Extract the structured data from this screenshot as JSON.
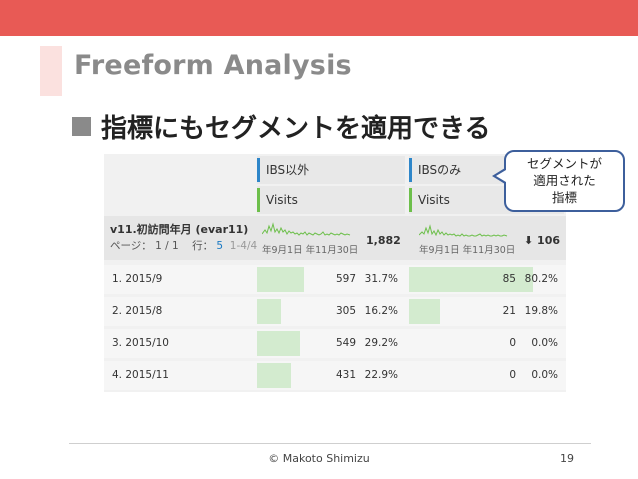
{
  "slide": {
    "title": "Freeform Analysis",
    "bullet": "指標にもセグメントを適用できる",
    "callout": [
      "セグメントが",
      "適用された",
      "指標"
    ],
    "copyright": "© Makoto Shimizu",
    "page_number": "19",
    "accent_color": "#e85a55"
  },
  "table": {
    "segments": [
      "IBS以外",
      "IBSのみ"
    ],
    "metrics": [
      "Visits",
      "Visits"
    ],
    "dimension": {
      "name": "v11.初訪問年月 (evar11)",
      "page_label": "ページ：",
      "page_value": "1 / 1",
      "rows_label": "行：",
      "rows_value": "5",
      "range": "1-4/4"
    },
    "spark_labels": [
      "年9月1日",
      "年11月30日"
    ],
    "totals": [
      "1,882",
      "106"
    ],
    "rows": [
      {
        "label": "1.   2015/9",
        "v1": "597",
        "p1": "31.7%",
        "f1": 0.317,
        "v2": "85",
        "p2": "80.2%",
        "f2": 0.802
      },
      {
        "label": "2.   2015/8",
        "v1": "305",
        "p1": "16.2%",
        "f1": 0.162,
        "v2": "21",
        "p2": "19.8%",
        "f2": 0.198
      },
      {
        "label": "3.   2015/10",
        "v1": "549",
        "p1": "29.2%",
        "f1": 0.292,
        "v2": "0",
        "p2": "0.0%",
        "f2": 0.0
      },
      {
        "label": "4.   2015/11",
        "v1": "431",
        "p1": "22.9%",
        "f1": 0.229,
        "v2": "0",
        "p2": "0.0%",
        "f2": 0.0
      }
    ]
  }
}
